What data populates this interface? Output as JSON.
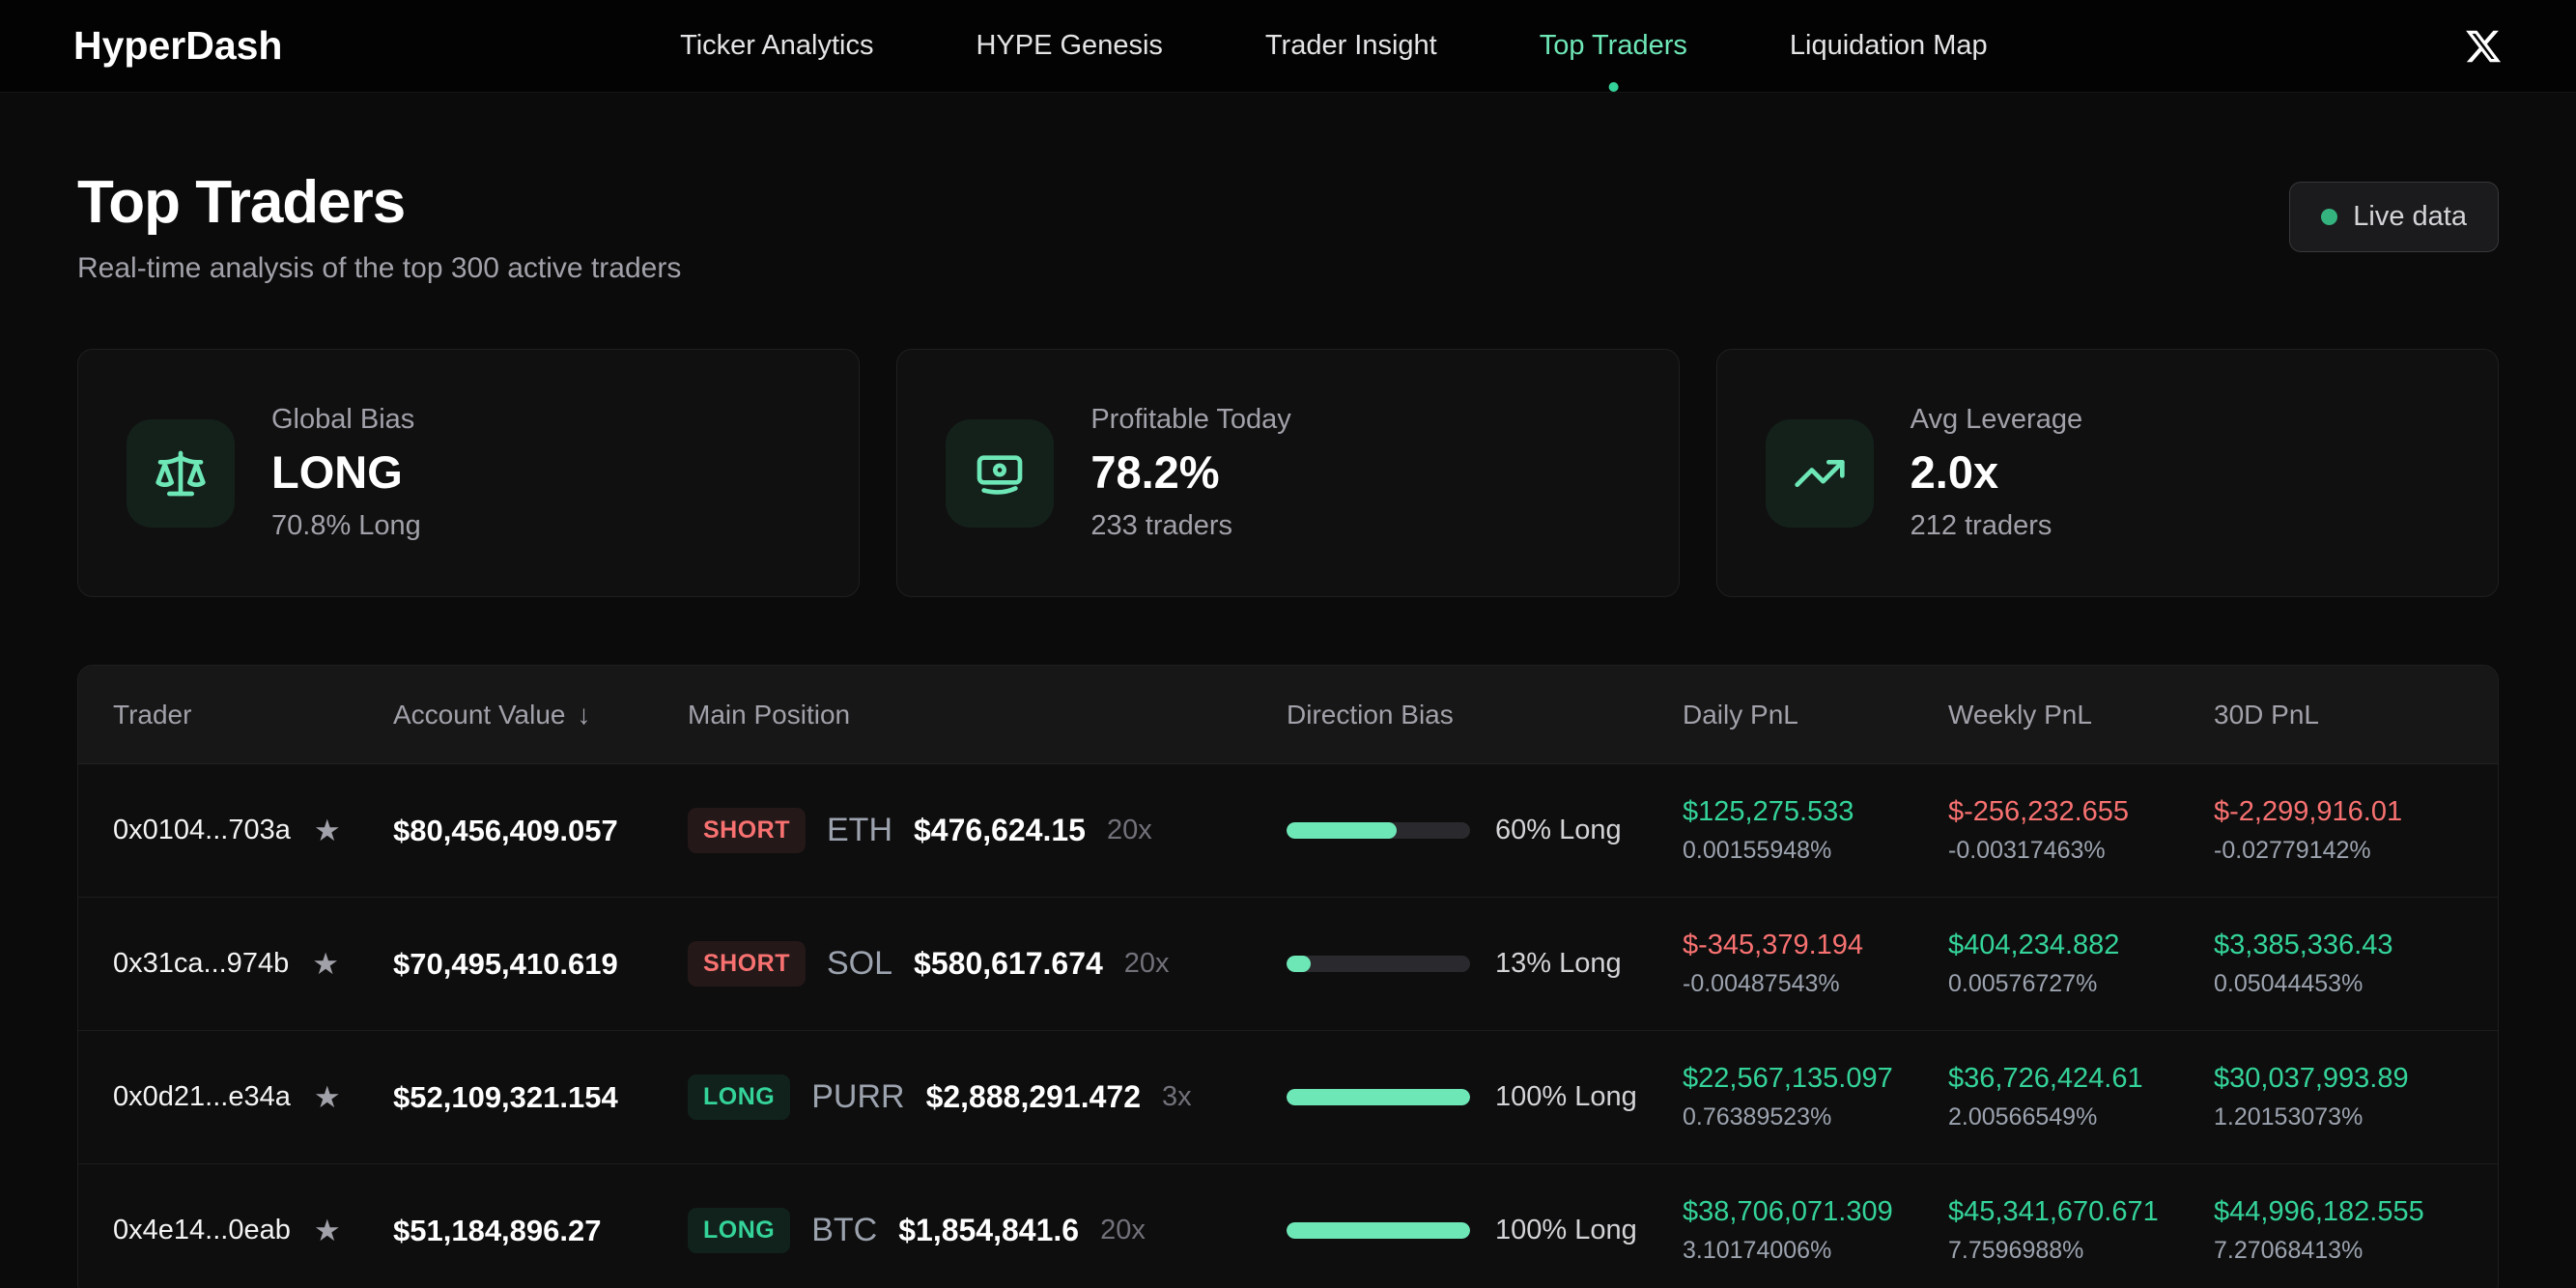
{
  "header": {
    "logo": "HyperDash",
    "nav": [
      {
        "label": "Ticker Analytics",
        "active": false
      },
      {
        "label": "HYPE Genesis",
        "active": false
      },
      {
        "label": "Trader Insight",
        "active": false
      },
      {
        "label": "Top Traders",
        "active": true
      },
      {
        "label": "Liquidation Map",
        "active": false
      }
    ]
  },
  "page": {
    "title": "Top Traders",
    "subtitle": "Real-time analysis of the top 300 active traders",
    "live_badge_label": "Live data"
  },
  "stats": [
    {
      "icon": "scale-icon",
      "label": "Global Bias",
      "value": "LONG",
      "sub": "70.8% Long"
    },
    {
      "icon": "banknote-icon",
      "label": "Profitable Today",
      "value": "78.2%",
      "sub": "233 traders"
    },
    {
      "icon": "trending-up-icon",
      "label": "Avg Leverage",
      "value": "2.0x",
      "sub": "212 traders"
    }
  ],
  "table": {
    "columns": {
      "trader": "Trader",
      "account_value": "Account Value",
      "main_position": "Main Position",
      "direction_bias": "Direction Bias",
      "daily_pnl": "Daily PnL",
      "weekly_pnl": "Weekly PnL",
      "pnl_30d": "30D PnL"
    },
    "sort": {
      "column": "Account Value",
      "direction": "desc",
      "glyph": "↓"
    },
    "rows": [
      {
        "address": "0x0104...703a",
        "account_value": "$80,456,409.057",
        "side": "SHORT",
        "side_class": "short",
        "coin": "ETH",
        "position_value": "$476,624.15",
        "leverage": "20x",
        "bias_percent": 60,
        "bias_label": "60% Long",
        "daily_pnl": "$125,275.533",
        "daily_pct": "0.00155948%",
        "daily_class": "pos",
        "weekly_pnl": "$-256,232.655",
        "weekly_pct": "-0.00317463%",
        "weekly_class": "neg",
        "pnl_30d": "$-2,299,916.01",
        "pnl_30d_pct": "-0.02779142%",
        "pnl_30d_class": "neg"
      },
      {
        "address": "0x31ca...974b",
        "account_value": "$70,495,410.619",
        "side": "SHORT",
        "side_class": "short",
        "coin": "SOL",
        "position_value": "$580,617.674",
        "leverage": "20x",
        "bias_percent": 13,
        "bias_label": "13% Long",
        "daily_pnl": "$-345,379.194",
        "daily_pct": "-0.00487543%",
        "daily_class": "neg",
        "weekly_pnl": "$404,234.882",
        "weekly_pct": "0.00576727%",
        "weekly_class": "pos",
        "pnl_30d": "$3,385,336.43",
        "pnl_30d_pct": "0.05044453%",
        "pnl_30d_class": "pos"
      },
      {
        "address": "0x0d21...e34a",
        "account_value": "$52,109,321.154",
        "side": "LONG",
        "side_class": "long",
        "coin": "PURR",
        "position_value": "$2,888,291.472",
        "leverage": "3x",
        "bias_percent": 100,
        "bias_label": "100% Long",
        "daily_pnl": "$22,567,135.097",
        "daily_pct": "0.76389523%",
        "daily_class": "pos",
        "weekly_pnl": "$36,726,424.61",
        "weekly_pct": "2.00566549%",
        "weekly_class": "pos",
        "pnl_30d": "$30,037,993.89",
        "pnl_30d_pct": "1.20153073%",
        "pnl_30d_class": "pos"
      },
      {
        "address": "0x4e14...0eab",
        "account_value": "$51,184,896.27",
        "side": "LONG",
        "side_class": "long",
        "coin": "BTC",
        "position_value": "$1,854,841.6",
        "leverage": "20x",
        "bias_percent": 100,
        "bias_label": "100% Long",
        "daily_pnl": "$38,706,071.309",
        "daily_pct": "3.10174006%",
        "daily_class": "pos",
        "weekly_pnl": "$45,341,670.671",
        "weekly_pct": "7.7596988%",
        "weekly_class": "pos",
        "pnl_30d": "$44,996,182.555",
        "pnl_30d_pct": "7.27068413%",
        "pnl_30d_class": "pos"
      }
    ]
  },
  "colors": {
    "accent_green": "#6ee7b7",
    "positive": "#34d399",
    "negative": "#f87171",
    "live_dot": "#34b37f"
  }
}
